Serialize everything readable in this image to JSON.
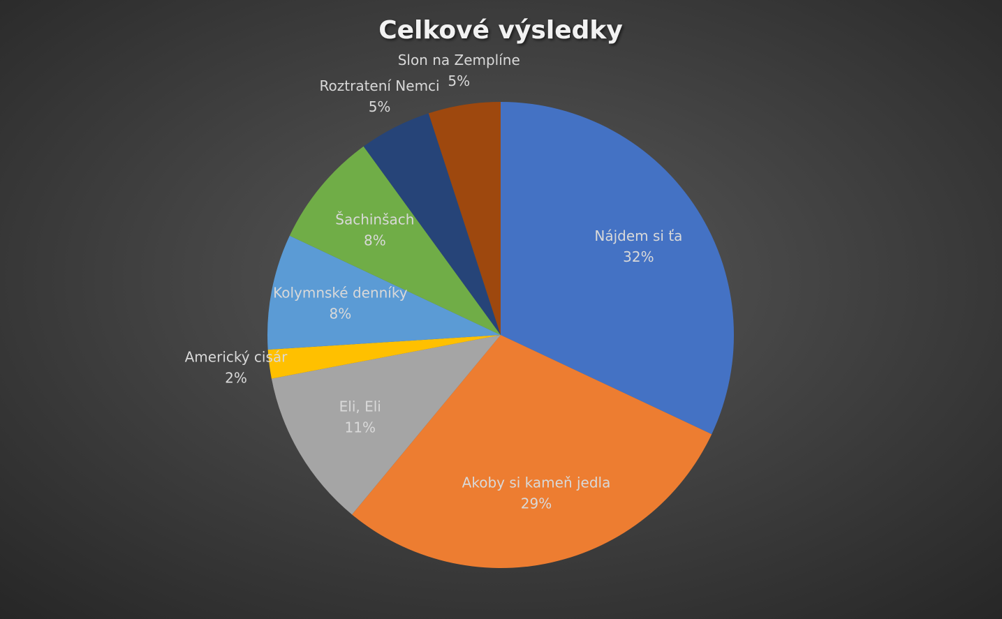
{
  "chart_data": {
    "type": "pie",
    "title": "Celkové výsledky",
    "categories": [
      "Nájdem si ťa",
      "Akoby si kameň jedla",
      "Eli, Eli",
      "Americký cisár",
      "Kolymnské denníky",
      "Šachinšach",
      "Roztratení Nemci",
      "Slon na Zemplíne"
    ],
    "values": [
      32,
      29,
      11,
      2,
      8,
      8,
      5,
      5
    ],
    "value_labels": [
      "32%",
      "29%",
      "11%",
      "2%",
      "8%",
      "8%",
      "5%",
      "5%"
    ],
    "colors": [
      "#4472c4",
      "#ed7d31",
      "#a5a5a5",
      "#ffc000",
      "#5b9bd5",
      "#70ad47",
      "#264478",
      "#9e480e"
    ]
  }
}
